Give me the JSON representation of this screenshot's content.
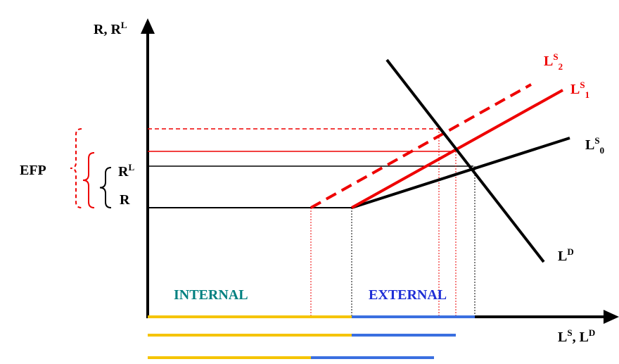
{
  "axes": {
    "y_label": [
      {
        "text": "R, R"
      },
      {
        "sup": "L"
      }
    ],
    "x_label": [
      {
        "text": "L"
      },
      {
        "sup": "S"
      },
      {
        "text": ", L"
      },
      {
        "sup": "D"
      }
    ]
  },
  "curves": {
    "supply_2": [
      {
        "text": "L"
      },
      {
        "sup": "S"
      },
      {
        "sub": "2"
      }
    ],
    "supply_1": [
      {
        "text": "L"
      },
      {
        "sup": "S"
      },
      {
        "sub": "1"
      }
    ],
    "supply_0": [
      {
        "text": "L"
      },
      {
        "sup": "S"
      },
      {
        "sub": "0"
      }
    ],
    "demand": [
      {
        "text": "L"
      },
      {
        "sup": "D"
      }
    ]
  },
  "levels": {
    "efp": [
      {
        "text": "EFP"
      }
    ],
    "rate_loan": [
      {
        "text": "R"
      },
      {
        "sup": "L"
      }
    ],
    "rate": [
      {
        "text": "R"
      }
    ]
  },
  "regions": {
    "internal": [
      {
        "text": "INTERNAL"
      }
    ],
    "external": [
      {
        "text": "EXTERNAL"
      }
    ]
  }
}
